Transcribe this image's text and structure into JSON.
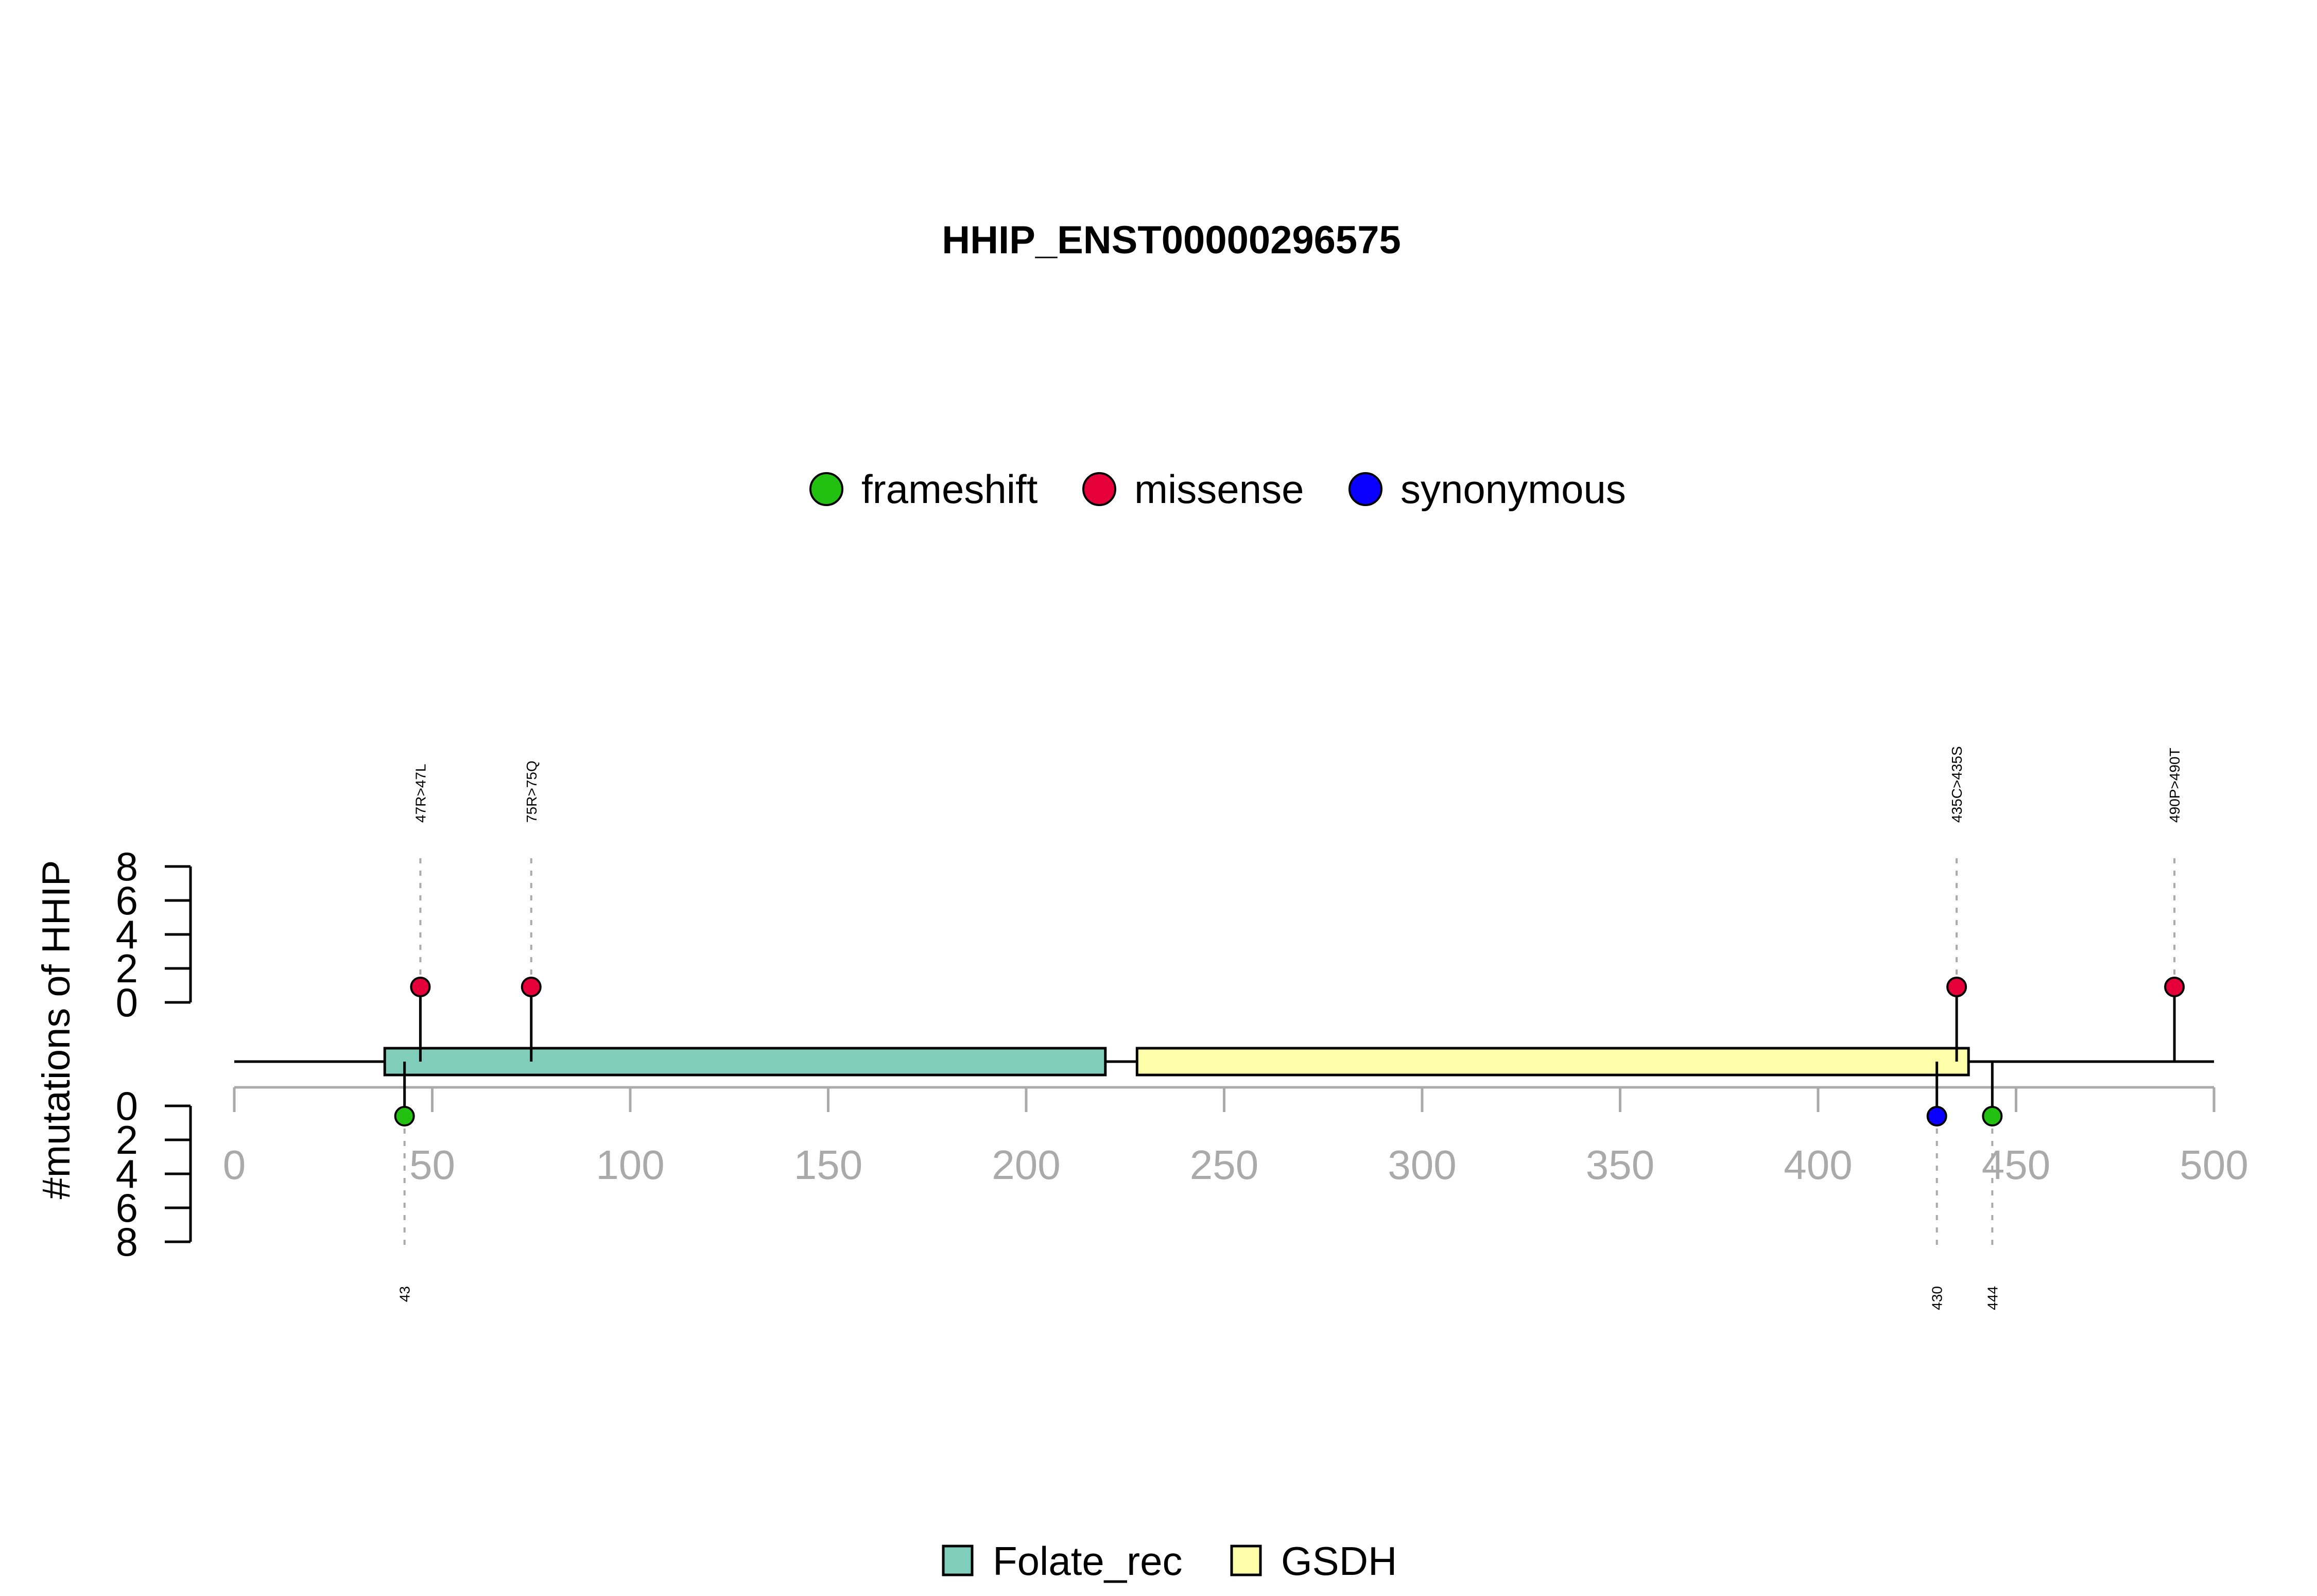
{
  "chart_data": {
    "type": "lollipop",
    "title": "HHIP_ENST00000296575",
    "ylabel": "#mutations of HHIP",
    "xlim": [
      0,
      500
    ],
    "x_ticks": [
      0,
      50,
      100,
      150,
      200,
      250,
      300,
      350,
      400,
      450,
      500
    ],
    "y_ticks": [
      0,
      2,
      4,
      6,
      8
    ],
    "mutation_legend": [
      {
        "name": "frameshift",
        "color": "#22c010"
      },
      {
        "name": "missense",
        "color": "#e6003a"
      },
      {
        "name": "synonymous",
        "color": "#0a00ff"
      }
    ],
    "domains": [
      {
        "name": "Folate_rec",
        "start": 38,
        "end": 220,
        "color": "#80cdbb"
      },
      {
        "name": "GSDH",
        "start": 228,
        "end": 438,
        "color": "#ffffaa"
      }
    ],
    "mutations_top": [
      {
        "position": 47,
        "label": "47R>47L",
        "type": "missense",
        "count": 1
      },
      {
        "position": 75,
        "label": "75R>75Q",
        "type": "missense",
        "count": 1
      },
      {
        "position": 435,
        "label": "435C>435S",
        "type": "missense",
        "count": 1
      },
      {
        "position": 490,
        "label": "490P>490T",
        "type": "missense",
        "count": 1
      }
    ],
    "mutations_bottom": [
      {
        "position": 43,
        "label": "43",
        "type": "frameshift",
        "count": 1
      },
      {
        "position": 430,
        "label": "430",
        "type": "synonymous",
        "count": 1
      },
      {
        "position": 444,
        "label": "444",
        "type": "frameshift",
        "count": 1
      }
    ]
  }
}
